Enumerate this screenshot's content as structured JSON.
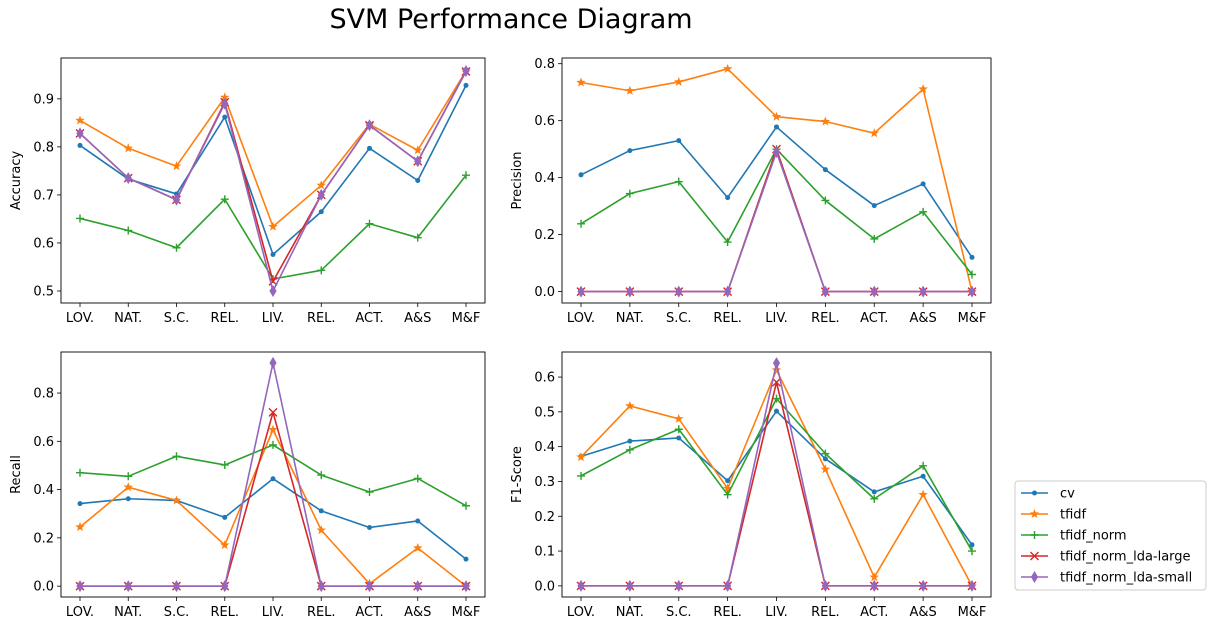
{
  "title": "SVM Performance Diagram",
  "chart_data": [
    {
      "type": "line",
      "ylabel": "Accuracy",
      "categories": [
        "LOV.",
        "NAT.",
        "S.C.",
        "REL.",
        "LIV.",
        "REL.",
        "ACT.",
        "A&S",
        "M&F"
      ],
      "ylim": [
        0.475,
        0.985
      ],
      "yticks": [
        "0.5",
        "0.6",
        "0.7",
        "0.8",
        "0.9"
      ],
      "series": [
        {
          "name": "cv",
          "values": [
            0.803,
            0.733,
            0.702,
            0.862,
            0.576,
            0.665,
            0.797,
            0.73,
            0.928
          ]
        },
        {
          "name": "tfidf",
          "values": [
            0.855,
            0.797,
            0.76,
            0.903,
            0.634,
            0.72,
            0.847,
            0.793,
            0.958
          ]
        },
        {
          "name": "tfidf_norm",
          "values": [
            0.651,
            0.626,
            0.59,
            0.691,
            0.525,
            0.543,
            0.64,
            0.611,
            0.741
          ]
        },
        {
          "name": "tfidf_norm_lda-large",
          "values": [
            0.828,
            0.735,
            0.69,
            0.893,
            0.52,
            0.7,
            0.845,
            0.77,
            0.957
          ]
        },
        {
          "name": "tfidf_norm_lda-small",
          "values": [
            0.828,
            0.735,
            0.69,
            0.89,
            0.5,
            0.7,
            0.845,
            0.77,
            0.958
          ]
        }
      ]
    },
    {
      "type": "line",
      "ylabel": "Precision",
      "categories": [
        "LOV.",
        "NAT.",
        "S.C.",
        "REL.",
        "LIV.",
        "REL.",
        "ACT.",
        "A&S",
        "M&F"
      ],
      "ylim": [
        -0.04,
        0.82
      ],
      "yticks": [
        "0.0",
        "0.2",
        "0.4",
        "0.6",
        "0.8"
      ],
      "series": [
        {
          "name": "cv",
          "values": [
            0.41,
            0.495,
            0.53,
            0.33,
            0.578,
            0.428,
            0.302,
            0.378,
            0.12
          ]
        },
        {
          "name": "tfidf",
          "values": [
            0.734,
            0.705,
            0.736,
            0.782,
            0.614,
            0.597,
            0.556,
            0.711,
            0.0
          ]
        },
        {
          "name": "tfidf_norm",
          "values": [
            0.238,
            0.344,
            0.386,
            0.174,
            0.5,
            0.32,
            0.185,
            0.28,
            0.06
          ]
        },
        {
          "name": "tfidf_norm_lda-large",
          "values": [
            0.0,
            0.0,
            0.0,
            0.0,
            0.5,
            0.0,
            0.0,
            0.0,
            0.0
          ]
        },
        {
          "name": "tfidf_norm_lda-small",
          "values": [
            0.0,
            0.0,
            0.0,
            0.0,
            0.49,
            0.0,
            0.0,
            0.0,
            0.0
          ]
        }
      ]
    },
    {
      "type": "line",
      "ylabel": "Recall",
      "categories": [
        "LOV.",
        "NAT.",
        "S.C.",
        "REL.",
        "LIV.",
        "REL.",
        "ACT.",
        "A&S",
        "M&F"
      ],
      "ylim": [
        -0.045,
        0.97
      ],
      "yticks": [
        "0.0",
        "0.2",
        "0.4",
        "0.6",
        "0.8"
      ],
      "series": [
        {
          "name": "cv",
          "values": [
            0.342,
            0.362,
            0.355,
            0.285,
            0.445,
            0.312,
            0.243,
            0.27,
            0.112
          ]
        },
        {
          "name": "tfidf",
          "values": [
            0.245,
            0.41,
            0.355,
            0.17,
            0.648,
            0.232,
            0.01,
            0.158,
            0.0
          ]
        },
        {
          "name": "tfidf_norm",
          "values": [
            0.47,
            0.455,
            0.538,
            0.502,
            0.585,
            0.46,
            0.39,
            0.446,
            0.333
          ]
        },
        {
          "name": "tfidf_norm_lda-large",
          "values": [
            0.0,
            0.0,
            0.0,
            0.0,
            0.72,
            0.0,
            0.0,
            0.0,
            0.0
          ]
        },
        {
          "name": "tfidf_norm_lda-small",
          "values": [
            0.0,
            0.0,
            0.0,
            0.0,
            0.925,
            0.0,
            0.0,
            0.0,
            0.0
          ]
        }
      ]
    },
    {
      "type": "line",
      "ylabel": "F1-Score",
      "categories": [
        "LOV.",
        "NAT.",
        "S.C.",
        "REL.",
        "LIV.",
        "REL.",
        "ACT.",
        "A&S",
        "M&F"
      ],
      "ylim": [
        -0.032,
        0.672
      ],
      "yticks": [
        "0.0",
        "0.1",
        "0.2",
        "0.3",
        "0.4",
        "0.5",
        "0.6"
      ],
      "series": [
        {
          "name": "cv",
          "values": [
            0.372,
            0.416,
            0.425,
            0.302,
            0.502,
            0.365,
            0.27,
            0.315,
            0.118
          ]
        },
        {
          "name": "tfidf",
          "values": [
            0.37,
            0.517,
            0.48,
            0.28,
            0.62,
            0.335,
            0.025,
            0.262,
            0.0
          ]
        },
        {
          "name": "tfidf_norm",
          "values": [
            0.316,
            0.391,
            0.45,
            0.262,
            0.538,
            0.38,
            0.25,
            0.345,
            0.1
          ]
        },
        {
          "name": "tfidf_norm_lda-large",
          "values": [
            0.0,
            0.0,
            0.0,
            0.0,
            0.585,
            0.0,
            0.0,
            0.0,
            0.0
          ]
        },
        {
          "name": "tfidf_norm_lda-small",
          "values": [
            0.0,
            0.0,
            0.0,
            0.0,
            0.64,
            0.0,
            0.0,
            0.0,
            0.0
          ]
        }
      ]
    }
  ],
  "legend": {
    "placement": "right",
    "entries": [
      "cv",
      "tfidf",
      "tfidf_norm",
      "tfidf_norm_lda-large",
      "tfidf_norm_lda-small"
    ]
  },
  "colors": {
    "cv": "#1f77b4",
    "tfidf": "#ff7f0e",
    "tfidf_norm": "#2ca02c",
    "tfidf_norm_lda-large": "#d62728",
    "tfidf_norm_lda-small": "#9467bd"
  },
  "markers": {
    "cv": "dot",
    "tfidf": "star",
    "tfidf_norm": "plus",
    "tfidf_norm_lda-large": "x",
    "tfidf_norm_lda-small": "thin-diamond"
  }
}
